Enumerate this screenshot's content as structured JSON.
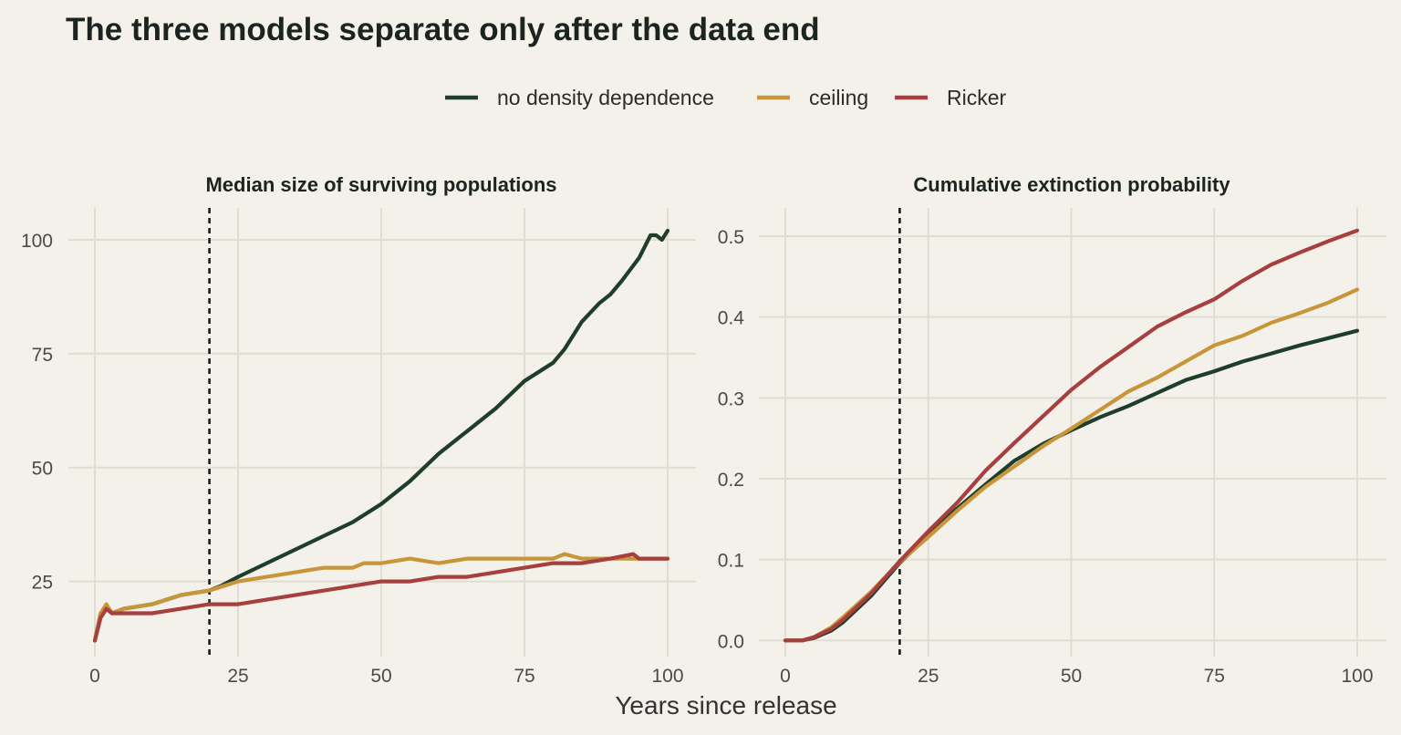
{
  "title": "The three models separate only after the data end",
  "xlabel": "Years since release",
  "colors": {
    "no density dependence": "#1f3d2b",
    "ceiling": "#c7963a",
    "Ricker": "#a63f3e",
    "background": "#f3f1ea"
  },
  "legend": [
    {
      "label": "no density dependence",
      "color": "#1f3d2b"
    },
    {
      "label": "ceiling",
      "color": "#c7963a"
    },
    {
      "label": "Ricker",
      "color": "#a63f3e"
    }
  ],
  "chart_data": [
    {
      "type": "line",
      "title": "Median size of surviving populations",
      "xlim": [
        0,
        100
      ],
      "ylim": [
        8.5,
        107
      ],
      "xticks": [
        0,
        25,
        50,
        75,
        100
      ],
      "yticks": [
        25,
        50,
        75,
        100
      ],
      "vline": 20,
      "series": [
        {
          "name": "no density dependence",
          "x": [
            0,
            1,
            2,
            3,
            5,
            10,
            15,
            20,
            22,
            25,
            30,
            35,
            40,
            45,
            50,
            55,
            60,
            65,
            70,
            75,
            80,
            82,
            85,
            88,
            90,
            92,
            95,
            97,
            98,
            99,
            100
          ],
          "y": [
            12,
            18,
            19,
            18,
            19,
            20,
            22,
            23,
            24,
            26,
            29,
            32,
            35,
            38,
            42,
            47,
            53,
            58,
            63,
            69,
            73,
            76,
            82,
            86,
            88,
            91,
            96,
            101,
            101,
            100,
            102
          ]
        },
        {
          "name": "ceiling",
          "x": [
            0,
            1,
            2,
            3,
            5,
            10,
            15,
            20,
            25,
            30,
            35,
            40,
            45,
            47,
            50,
            55,
            60,
            65,
            70,
            80,
            82,
            85,
            90,
            95,
            100
          ],
          "y": [
            12,
            18,
            20,
            18,
            19,
            20,
            22,
            23,
            25,
            26,
            27,
            28,
            28,
            29,
            29,
            30,
            29,
            30,
            30,
            30,
            31,
            30,
            30,
            30,
            30
          ]
        },
        {
          "name": "Ricker",
          "x": [
            0,
            1,
            2,
            3,
            5,
            10,
            15,
            20,
            25,
            30,
            35,
            40,
            45,
            50,
            55,
            60,
            65,
            70,
            75,
            80,
            85,
            90,
            94,
            95,
            100
          ],
          "y": [
            12,
            17,
            19,
            18,
            18,
            18,
            19,
            20,
            20,
            21,
            22,
            23,
            24,
            25,
            25,
            26,
            26,
            27,
            28,
            29,
            29,
            30,
            31,
            30,
            30
          ]
        }
      ]
    },
    {
      "type": "line",
      "title": "Cumulative extinction probability",
      "xlim": [
        0,
        100
      ],
      "ylim": [
        -0.02,
        0.535
      ],
      "xticks": [
        0,
        25,
        50,
        75,
        100
      ],
      "yticks": [
        0.0,
        0.1,
        0.2,
        0.3,
        0.4,
        0.5
      ],
      "ytick_labels": [
        "0.0",
        "0.1",
        "0.2",
        "0.3",
        "0.4",
        "0.5"
      ],
      "vline": 20,
      "series": [
        {
          "name": "no density dependence",
          "x": [
            0,
            3,
            5,
            8,
            10,
            15,
            20,
            25,
            30,
            35,
            40,
            45,
            50,
            55,
            60,
            65,
            70,
            75,
            80,
            85,
            90,
            95,
            100
          ],
          "y": [
            0,
            0,
            0.003,
            0.012,
            0.022,
            0.055,
            0.096,
            0.13,
            0.163,
            0.193,
            0.222,
            0.243,
            0.26,
            0.276,
            0.29,
            0.306,
            0.322,
            0.333,
            0.345,
            0.355,
            0.365,
            0.374,
            0.383
          ]
        },
        {
          "name": "ceiling",
          "x": [
            0,
            3,
            5,
            8,
            10,
            15,
            20,
            25,
            30,
            35,
            40,
            45,
            50,
            55,
            60,
            65,
            70,
            75,
            80,
            85,
            90,
            95,
            100
          ],
          "y": [
            0,
            0,
            0.004,
            0.016,
            0.028,
            0.06,
            0.097,
            0.128,
            0.16,
            0.19,
            0.215,
            0.24,
            0.262,
            0.285,
            0.308,
            0.325,
            0.345,
            0.365,
            0.377,
            0.393,
            0.405,
            0.418,
            0.434
          ]
        },
        {
          "name": "Ricker",
          "x": [
            0,
            3,
            5,
            8,
            10,
            15,
            20,
            25,
            30,
            35,
            40,
            45,
            50,
            55,
            60,
            65,
            70,
            75,
            80,
            85,
            90,
            95,
            100
          ],
          "y": [
            0,
            0,
            0.004,
            0.014,
            0.025,
            0.058,
            0.098,
            0.135,
            0.17,
            0.21,
            0.244,
            0.277,
            0.31,
            0.338,
            0.363,
            0.388,
            0.406,
            0.422,
            0.445,
            0.465,
            0.48,
            0.494,
            0.507
          ]
        }
      ]
    }
  ]
}
